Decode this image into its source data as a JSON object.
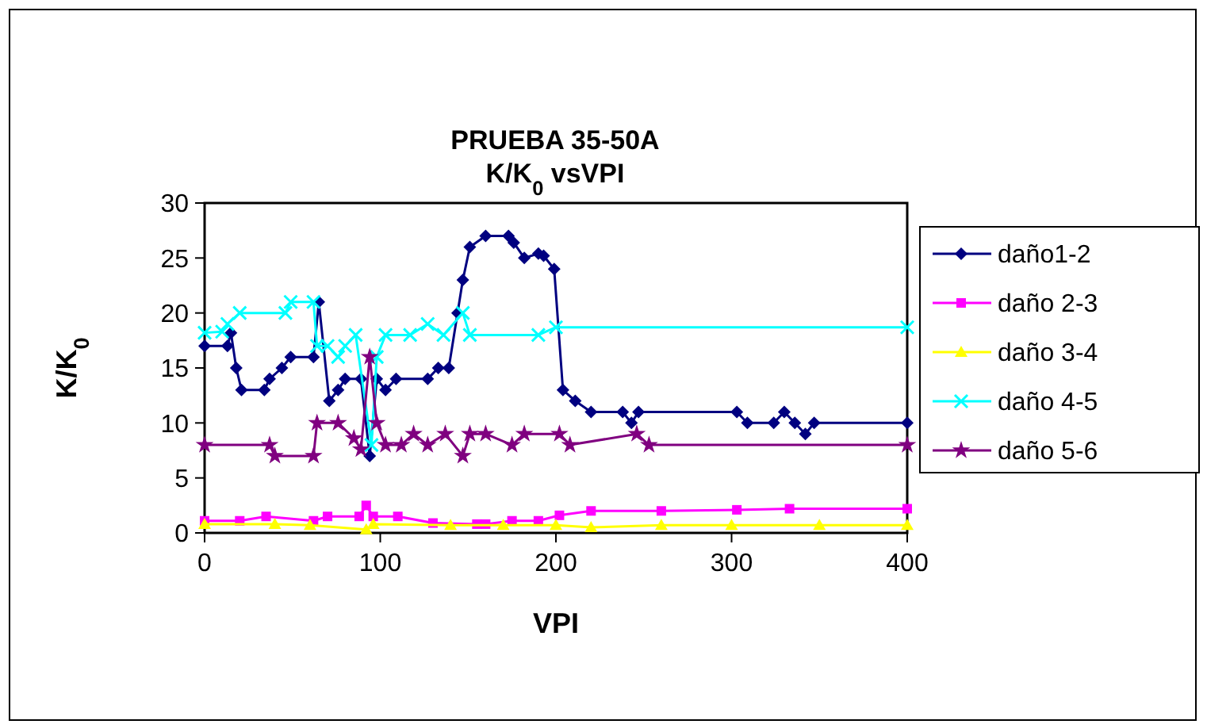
{
  "chart_data": {
    "type": "line",
    "title": "PRUEBA 35-50A",
    "subtitle": "K/K$_{0}$ vsVPI",
    "xlabel": "VPI",
    "ylabel": "K/K$_{0}$",
    "xlim": [
      0,
      400
    ],
    "xticks": [
      0,
      100,
      200,
      300,
      400
    ],
    "ylim": [
      0,
      30
    ],
    "yticks": [
      0,
      5,
      10,
      15,
      20,
      25,
      30
    ],
    "grid": false,
    "legend": "right",
    "line_style": "solid",
    "series": [
      {
        "name": "daño1-2",
        "color": "#000080",
        "marker": "diamond",
        "x": [
          0,
          13,
          15,
          18,
          21,
          34,
          37,
          44,
          49,
          62,
          65,
          71,
          76,
          80,
          89,
          94,
          98,
          103,
          109,
          127,
          133,
          139,
          144,
          147,
          151,
          160,
          173,
          176,
          182,
          190,
          193,
          199,
          204,
          211,
          220,
          238,
          243,
          247,
          303,
          309,
          324,
          330,
          336,
          342,
          347,
          400
        ],
        "values": [
          17,
          17,
          18.2,
          15,
          13,
          13,
          14,
          15,
          16,
          16,
          21,
          12,
          13,
          14,
          14,
          7,
          14,
          13,
          14,
          14,
          15,
          15,
          20,
          23,
          26,
          27,
          27,
          26.4,
          25,
          25.4,
          25.2,
          24,
          13,
          12,
          11,
          11,
          10,
          11,
          11,
          10,
          10,
          11,
          10,
          9,
          10,
          10
        ]
      },
      {
        "name": "daño 2-3",
        "color": "#ff00ff",
        "marker": "square",
        "x": [
          0,
          20,
          35,
          62,
          70,
          88,
          92,
          96,
          110,
          130,
          155,
          160,
          175,
          190,
          202,
          220,
          260,
          303,
          333,
          400
        ],
        "values": [
          1.1,
          1.1,
          1.5,
          1.1,
          1.5,
          1.5,
          2.5,
          1.5,
          1.5,
          0.9,
          0.8,
          0.8,
          1.1,
          1.1,
          1.6,
          2,
          2,
          2.1,
          2.2,
          2.2
        ]
      },
      {
        "name": "daño 3-4",
        "color": "#ffff00",
        "marker": "triangle",
        "x": [
          0,
          40,
          60,
          92,
          96,
          140,
          170,
          200,
          220,
          260,
          300,
          350,
          400
        ],
        "values": [
          0.8,
          0.8,
          0.7,
          0.3,
          0.8,
          0.7,
          0.7,
          0.7,
          0.5,
          0.7,
          0.7,
          0.7,
          0.7
        ]
      },
      {
        "name": "daño 4-5",
        "color": "#00ffff",
        "marker": "cross",
        "x": [
          0,
          10,
          13,
          20,
          46,
          49,
          62,
          64,
          70,
          76,
          80,
          86,
          95,
          98,
          103,
          117,
          127,
          136,
          147,
          151,
          190,
          200,
          400
        ],
        "values": [
          18.2,
          18.3,
          19,
          20,
          20,
          21,
          21,
          17,
          17,
          16,
          17,
          18,
          8,
          16,
          18,
          18,
          19,
          18,
          20,
          18,
          18,
          18.7,
          18.7
        ]
      },
      {
        "name": "daño 5-6",
        "color": "#800080",
        "marker": "star",
        "x": [
          0,
          37,
          40,
          62,
          64,
          76,
          85,
          89,
          94,
          98,
          103,
          112,
          119,
          127,
          137,
          147,
          151,
          160,
          175,
          182,
          202,
          208,
          246,
          253,
          400
        ],
        "values": [
          8,
          8,
          7,
          7,
          10,
          10,
          8.6,
          7.6,
          16,
          10,
          8,
          8,
          9,
          8,
          9,
          7,
          9,
          9,
          8,
          9,
          9,
          8,
          9,
          8,
          8
        ]
      }
    ]
  }
}
